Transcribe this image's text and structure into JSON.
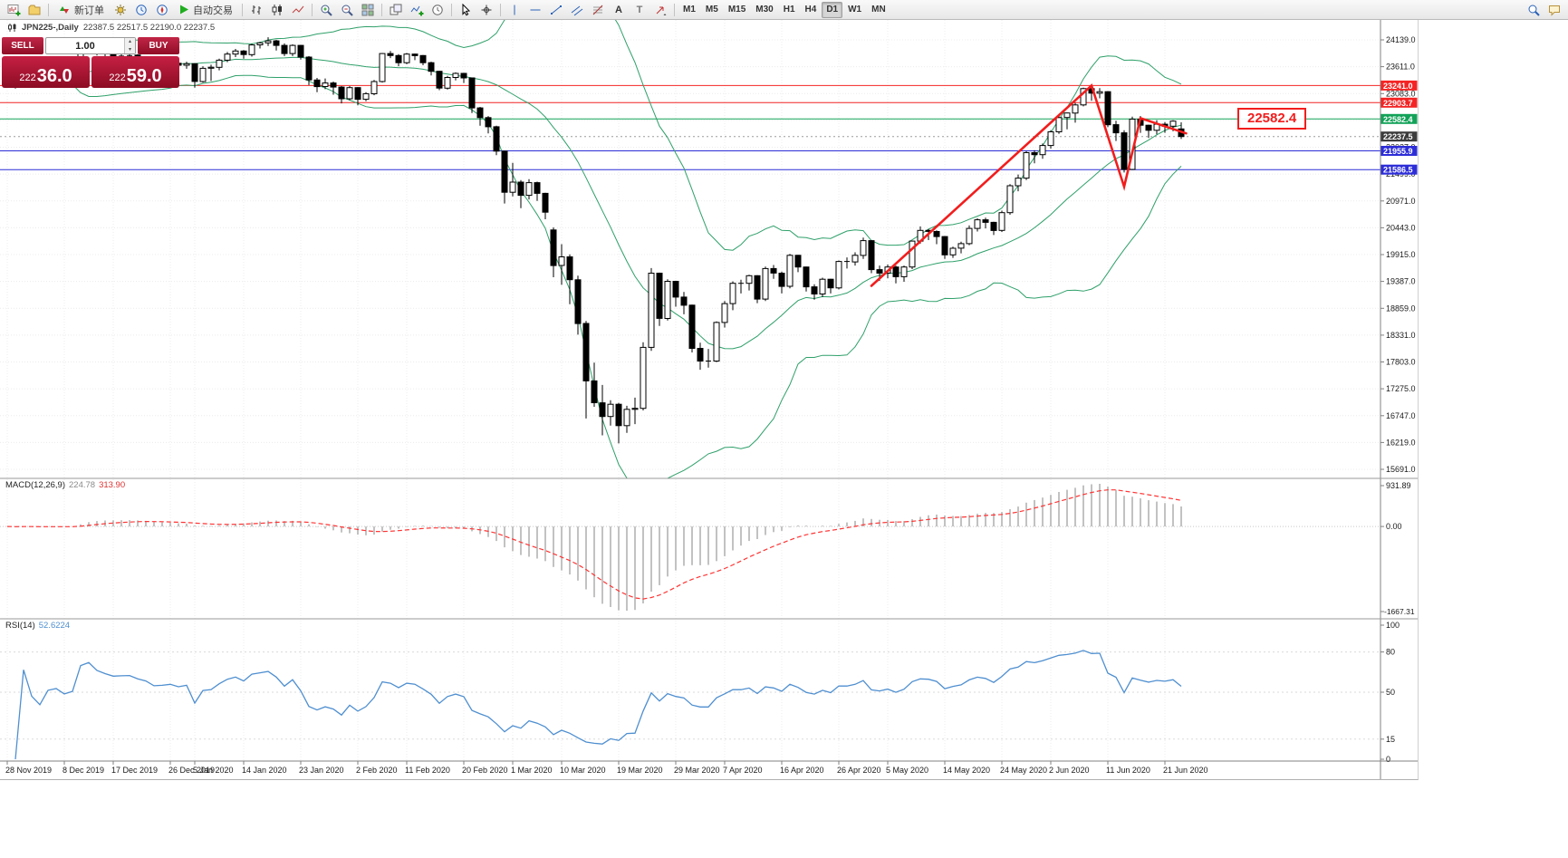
{
  "toolbar": {
    "new_order_label": "新订单",
    "autotrading_label": "自动交易",
    "timeframes": [
      "M1",
      "M5",
      "M15",
      "M30",
      "H1",
      "H4",
      "D1",
      "W1",
      "MN"
    ],
    "active_timeframe": "D1"
  },
  "chart": {
    "title": "JPN225-,Daily",
    "ohlc": "22387.5 22517.5 22190.0 22237.5"
  },
  "trade_panel": {
    "sell_label": "SELL",
    "buy_label": "BUY",
    "volume": "1.00",
    "sell_price": "22236.0",
    "buy_price": "22259.0"
  },
  "macd": {
    "label": "MACD(12,26,9)",
    "main_value": "224.78",
    "signal_value": "313.90",
    "scale_max": "931.89",
    "scale_zero": "0.00",
    "scale_min": "-1667.31",
    "params": {
      "fast": 12,
      "slow": 26,
      "signal": 9
    }
  },
  "rsi": {
    "label": "RSI(14)",
    "value": "52.6224",
    "period": 14,
    "scale": [
      100,
      80,
      50,
      15,
      0
    ],
    "level_lines": [
      80,
      50,
      15
    ]
  },
  "chart_data": {
    "type": "candlestick",
    "symbol": "JPN225-",
    "period": "Daily",
    "ohlc_current": {
      "open": 22387.5,
      "high": 22517.5,
      "low": 22190.0,
      "close": 22237.5
    },
    "y_ticks": [
      24139,
      23611,
      23083,
      22555,
      22027,
      21499,
      20971,
      20443,
      19915,
      19387,
      18859,
      18331,
      17803,
      17275,
      16747,
      16219,
      15691
    ],
    "x_labels": [
      {
        "label": "28 Nov 2019",
        "bar": 0
      },
      {
        "label": "8 Dec 2019",
        "bar": 7
      },
      {
        "label": "17 Dec 2019",
        "bar": 13
      },
      {
        "label": "26 Dec 2019",
        "bar": 20
      },
      {
        "label": "5 Jan 2020",
        "bar": 23
      },
      {
        "label": "14 Jan 2020",
        "bar": 29
      },
      {
        "label": "23 Jan 2020",
        "bar": 36
      },
      {
        "label": "2 Feb 2020",
        "bar": 43
      },
      {
        "label": "11 Feb 2020",
        "bar": 49
      },
      {
        "label": "20 Feb 2020",
        "bar": 56
      },
      {
        "label": "1 Mar 2020",
        "bar": 62
      },
      {
        "label": "10 Mar 2020",
        "bar": 68
      },
      {
        "label": "19 Mar 2020",
        "bar": 75
      },
      {
        "label": "29 Mar 2020",
        "bar": 82
      },
      {
        "label": "7 Apr 2020",
        "bar": 88
      },
      {
        "label": "16 Apr 2020",
        "bar": 95
      },
      {
        "label": "26 Apr 2020",
        "bar": 102
      },
      {
        "label": "5 May 2020",
        "bar": 108
      },
      {
        "label": "14 May 2020",
        "bar": 115
      },
      {
        "label": "24 May 2020",
        "bar": 122
      },
      {
        "label": "2 Jun 2020",
        "bar": 128
      },
      {
        "label": "11 Jun 2020",
        "bar": 135
      },
      {
        "label": "21 Jun 2020",
        "bar": 142
      }
    ],
    "bollinger": {
      "period": 20,
      "deviation": 2
    },
    "hlines": [
      {
        "price": 23241.0,
        "label": "23241.0",
        "color": "#f42424"
      },
      {
        "price": 22903.7,
        "label": "22903.7",
        "color": "#f42424"
      },
      {
        "price": 22582.4,
        "label": "22582.4",
        "color": "#12a258"
      },
      {
        "price": 21955.9,
        "label": "21955.9",
        "color": "#2d2dd8"
      },
      {
        "price": 21586.5,
        "label": "21586.5",
        "color": "#2d2dd8"
      }
    ],
    "current_price": {
      "price": 22237.5,
      "label": "22237.5",
      "color": "#3c3c3c"
    },
    "trend_line": {
      "color": "#f21d1d",
      "points": [
        {
          "bar": 106,
          "price": 19300
        },
        {
          "bar": 133,
          "price": 23241
        },
        {
          "bar": 137,
          "price": 21250
        },
        {
          "bar": 139,
          "price": 22600
        },
        {
          "bar": 144.6,
          "price": 22300
        }
      ]
    },
    "annotation_label": {
      "text": "22582.4",
      "color": "#f21d1d"
    },
    "candles": [
      [
        23380,
        23450,
        23240,
        23410
      ],
      [
        23410,
        23440,
        23180,
        23290
      ],
      [
        23290,
        23560,
        23270,
        23530
      ],
      [
        23530,
        23560,
        23330,
        23380
      ],
      [
        23380,
        23400,
        23210,
        23300
      ],
      [
        23300,
        23450,
        23280,
        23430
      ],
      [
        23430,
        23470,
        23350,
        23450
      ],
      [
        23450,
        23480,
        23310,
        23390
      ],
      [
        23390,
        23440,
        23330,
        23420
      ],
      [
        23420,
        23980,
        23420,
        23950
      ],
      [
        23950,
        24090,
        23900,
        24060
      ],
      [
        24060,
        24070,
        23830,
        23930
      ],
      [
        23930,
        23950,
        23780,
        23870
      ],
      [
        23870,
        23900,
        23760,
        23820
      ],
      [
        23820,
        23880,
        23770,
        23830
      ],
      [
        23830,
        23870,
        23760,
        23840
      ],
      [
        23840,
        23860,
        23700,
        23780
      ],
      [
        23780,
        23810,
        23680,
        23740
      ],
      [
        23740,
        23760,
        23560,
        23650
      ],
      [
        23650,
        23730,
        23590,
        23660
      ],
      [
        23660,
        23740,
        23610,
        23680
      ],
      [
        23680,
        23700,
        23560,
        23640
      ],
      [
        23640,
        23710,
        23570,
        23670
      ],
      [
        23670,
        23680,
        23200,
        23320
      ],
      [
        23320,
        23620,
        23300,
        23580
      ],
      [
        23580,
        23650,
        23330,
        23600
      ],
      [
        23600,
        23770,
        23540,
        23740
      ],
      [
        23740,
        23900,
        23700,
        23860
      ],
      [
        23860,
        23960,
        23800,
        23920
      ],
      [
        23920,
        23940,
        23770,
        23850
      ],
      [
        23850,
        24060,
        23810,
        24040
      ],
      [
        24040,
        24100,
        23970,
        24080
      ],
      [
        24080,
        24190,
        24020,
        24120
      ],
      [
        24120,
        24140,
        23930,
        24030
      ],
      [
        24030,
        24070,
        23820,
        23870
      ],
      [
        23870,
        24050,
        23820,
        24030
      ],
      [
        24030,
        24040,
        23750,
        23800
      ],
      [
        23800,
        23820,
        23250,
        23350
      ],
      [
        23350,
        23390,
        23110,
        23220
      ],
      [
        23220,
        23380,
        23170,
        23290
      ],
      [
        23290,
        23320,
        23060,
        23210
      ],
      [
        23210,
        23230,
        22890,
        22980
      ],
      [
        22980,
        23230,
        22950,
        23200
      ],
      [
        23200,
        23210,
        22850,
        22970
      ],
      [
        22970,
        23110,
        22930,
        23080
      ],
      [
        23080,
        23350,
        23050,
        23320
      ],
      [
        23320,
        23880,
        23300,
        23870
      ],
      [
        23870,
        23920,
        23780,
        23830
      ],
      [
        23830,
        23860,
        23620,
        23690
      ],
      [
        23690,
        23880,
        23660,
        23860
      ],
      [
        23860,
        23870,
        23740,
        23830
      ],
      [
        23830,
        23840,
        23640,
        23690
      ],
      [
        23690,
        23710,
        23440,
        23520
      ],
      [
        23520,
        23530,
        23150,
        23190
      ],
      [
        23190,
        23430,
        23160,
        23400
      ],
      [
        23400,
        23500,
        23340,
        23480
      ],
      [
        23480,
        23490,
        23290,
        23390
      ],
      [
        23390,
        23400,
        22700,
        22800
      ],
      [
        22800,
        22820,
        22450,
        22610
      ],
      [
        22610,
        22640,
        22300,
        22430
      ],
      [
        22430,
        22450,
        21870,
        21950
      ],
      [
        21950,
        21960,
        20920,
        21140
      ],
      [
        21140,
        21720,
        21060,
        21340
      ],
      [
        21340,
        21380,
        20830,
        21080
      ],
      [
        21080,
        21400,
        21000,
        21330
      ],
      [
        21330,
        21350,
        20970,
        21120
      ],
      [
        21120,
        21130,
        20610,
        20750
      ],
      [
        20400,
        20450,
        19470,
        19700
      ],
      [
        19700,
        20120,
        19320,
        19870
      ],
      [
        19870,
        19920,
        18940,
        19420
      ],
      [
        19420,
        19500,
        18340,
        18560
      ],
      [
        18560,
        18610,
        16690,
        17430
      ],
      [
        17430,
        17790,
        16920,
        17000
      ],
      [
        17000,
        17350,
        16360,
        16730
      ],
      [
        16730,
        17050,
        16550,
        16970
      ],
      [
        16970,
        17000,
        16200,
        16550
      ],
      [
        16550,
        16940,
        16410,
        16870
      ],
      [
        16870,
        17100,
        16580,
        16890
      ],
      [
        16890,
        18190,
        16850,
        18090
      ],
      [
        18090,
        19650,
        18020,
        19550
      ],
      [
        19550,
        19560,
        18510,
        18660
      ],
      [
        18660,
        19430,
        18620,
        19390
      ],
      [
        19390,
        19400,
        18890,
        19080
      ],
      [
        19080,
        19180,
        18740,
        18920
      ],
      [
        18920,
        18930,
        17990,
        18070
      ],
      [
        18070,
        18180,
        17650,
        17820
      ],
      [
        17820,
        18060,
        17690,
        17820
      ],
      [
        17820,
        18600,
        17800,
        18580
      ],
      [
        18580,
        19000,
        18480,
        18950
      ],
      [
        18950,
        19390,
        18820,
        19350
      ],
      [
        19350,
        19420,
        19150,
        19350
      ],
      [
        19350,
        19520,
        19210,
        19500
      ],
      [
        19500,
        19510,
        18960,
        19040
      ],
      [
        19040,
        19680,
        19000,
        19640
      ],
      [
        19640,
        19710,
        19440,
        19550
      ],
      [
        19550,
        19580,
        19150,
        19290
      ],
      [
        19290,
        19930,
        19250,
        19900
      ],
      [
        19900,
        19910,
        19570,
        19670
      ],
      [
        19670,
        19680,
        19190,
        19280
      ],
      [
        19280,
        19330,
        19030,
        19140
      ],
      [
        19140,
        19460,
        19080,
        19430
      ],
      [
        19430,
        19440,
        19150,
        19260
      ],
      [
        19260,
        19800,
        19230,
        19780
      ],
      [
        19780,
        19860,
        19640,
        19770
      ],
      [
        19770,
        19960,
        19700,
        19900
      ],
      [
        19900,
        20250,
        19830,
        20190
      ],
      [
        20190,
        20200,
        19550,
        19620
      ],
      [
        19620,
        19700,
        19400,
        19550
      ],
      [
        19550,
        19720,
        19450,
        19670
      ],
      [
        19670,
        19700,
        19350,
        19480
      ],
      [
        19480,
        19700,
        19380,
        19670
      ],
      [
        19670,
        20190,
        19630,
        20180
      ],
      [
        20180,
        20470,
        20130,
        20390
      ],
      [
        20390,
        20420,
        20200,
        20370
      ],
      [
        20370,
        20390,
        20120,
        20270
      ],
      [
        20270,
        20280,
        19830,
        19910
      ],
      [
        19910,
        20070,
        19850,
        20040
      ],
      [
        20040,
        20170,
        19940,
        20130
      ],
      [
        20130,
        20490,
        20100,
        20430
      ],
      [
        20430,
        20630,
        20370,
        20600
      ],
      [
        20600,
        20640,
        20430,
        20550
      ],
      [
        20550,
        20560,
        20300,
        20390
      ],
      [
        20390,
        20780,
        20360,
        20740
      ],
      [
        20740,
        21300,
        20700,
        21270
      ],
      [
        21270,
        21490,
        21160,
        21420
      ],
      [
        21420,
        21950,
        21380,
        21920
      ],
      [
        21920,
        21970,
        21710,
        21880
      ],
      [
        21880,
        22100,
        21800,
        22060
      ],
      [
        22060,
        22360,
        22000,
        22330
      ],
      [
        22330,
        22650,
        22290,
        22610
      ],
      [
        22610,
        22710,
        22380,
        22700
      ],
      [
        22700,
        22900,
        22510,
        22860
      ],
      [
        22860,
        23200,
        22830,
        23180
      ],
      [
        23180,
        23241,
        22940,
        23090
      ],
      [
        23090,
        23190,
        22990,
        23120
      ],
      [
        23120,
        23130,
        22420,
        22470
      ],
      [
        22470,
        22550,
        22150,
        22310
      ],
      [
        22310,
        22360,
        21530,
        21590
      ],
      [
        21590,
        22630,
        21580,
        22580
      ],
      [
        22580,
        22640,
        22310,
        22460
      ],
      [
        22460,
        22470,
        22210,
        22360
      ],
      [
        22360,
        22560,
        22280,
        22480
      ],
      [
        22480,
        22520,
        22310,
        22440
      ],
      [
        22440,
        22560,
        22340,
        22540
      ],
      [
        22387.5,
        22517.5,
        22190,
        22237.5
      ]
    ]
  }
}
